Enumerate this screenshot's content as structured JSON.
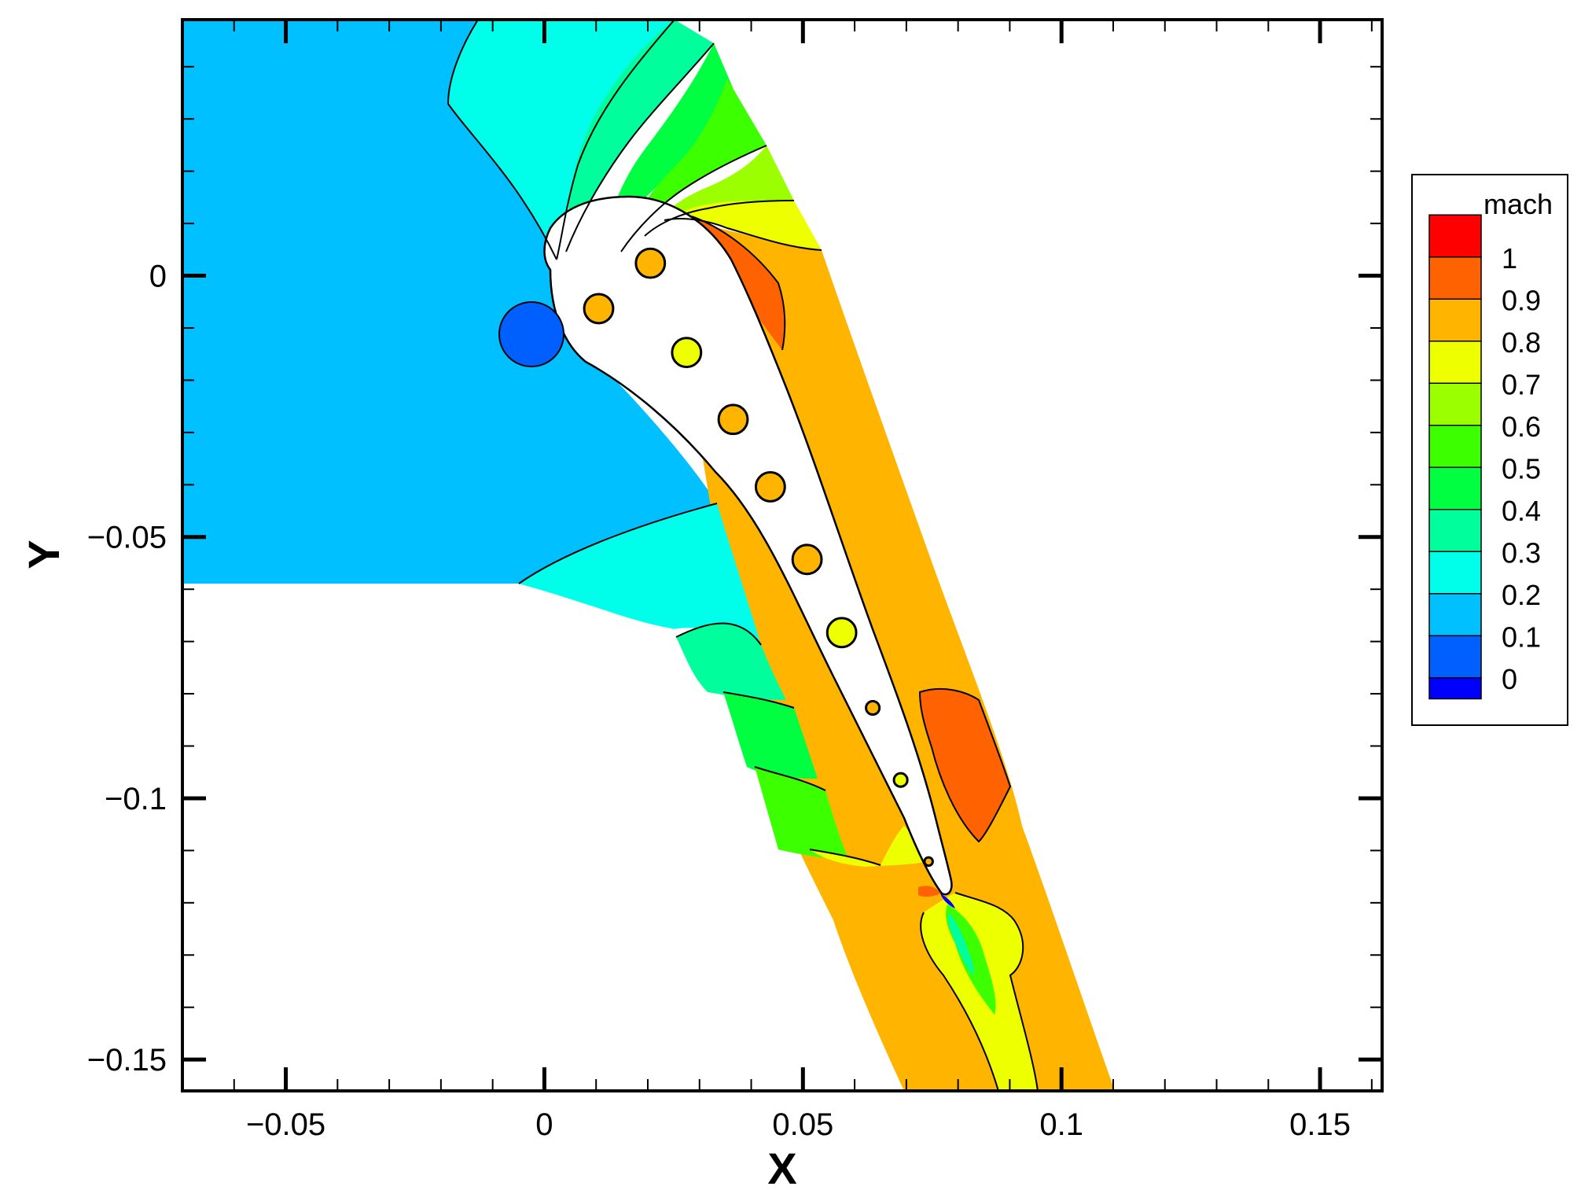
{
  "chart_data": {
    "type": "contour",
    "xlabel": "X",
    "ylabel": "Y",
    "xlim": [
      -0.07,
      0.162
    ],
    "ylim": [
      -0.156,
      0.049
    ],
    "x_ticks": [
      {
        "value": -0.05,
        "label": "−0.05"
      },
      {
        "value": 0,
        "label": "0"
      },
      {
        "value": 0.05,
        "label": "0.05"
      },
      {
        "value": 0.1,
        "label": "0.1"
      },
      {
        "value": 0.15,
        "label": "0.15"
      }
    ],
    "y_ticks": [
      {
        "value": 0,
        "label": "0"
      },
      {
        "value": -0.05,
        "label": "−0.05"
      },
      {
        "value": -0.1,
        "label": "−0.1"
      },
      {
        "value": -0.15,
        "label": "−0.15"
      }
    ],
    "legend": {
      "title": "mach",
      "placement": "right",
      "levels": [
        {
          "value": 1,
          "label": "1",
          "color": "#ff0000"
        },
        {
          "value": 0.9,
          "label": "0.9",
          "color": "#ff6200"
        },
        {
          "value": 0.8,
          "label": "0.8",
          "color": "#ffb400"
        },
        {
          "value": 0.7,
          "label": "0.7",
          "color": "#eeff00"
        },
        {
          "value": 0.6,
          "label": "0.6",
          "color": "#9cff00"
        },
        {
          "value": 0.5,
          "label": "0.5",
          "color": "#3cff00"
        },
        {
          "value": 0.4,
          "label": "0.4",
          "color": "#00ff40"
        },
        {
          "value": 0.3,
          "label": "0.3",
          "color": "#00ff9c"
        },
        {
          "value": 0.2,
          "label": "0.2",
          "color": "#00ffea"
        },
        {
          "value": 0.1,
          "label": "0.1",
          "color": "#00c0ff"
        },
        {
          "value": 0,
          "label": "0",
          "color": "#0060ff"
        }
      ],
      "bottom_color": "#0000ff"
    },
    "cooling_holes": [
      {
        "x": 0.0205,
        "y": 0.0024,
        "r": 0.0028,
        "mach": 0.8
      },
      {
        "x": 0.0105,
        "y": -0.0063,
        "r": 0.0028,
        "mach": 0.8
      },
      {
        "x": 0.0275,
        "y": -0.0147,
        "r": 0.0028,
        "mach": 0.7
      },
      {
        "x": 0.0365,
        "y": -0.0275,
        "r": 0.0028,
        "mach": 0.8
      },
      {
        "x": 0.0437,
        "y": -0.0404,
        "r": 0.0028,
        "mach": 0.8
      },
      {
        "x": 0.0508,
        "y": -0.0543,
        "r": 0.0028,
        "mach": 0.8
      },
      {
        "x": 0.0575,
        "y": -0.0683,
        "r": 0.0028,
        "mach": 0.7
      },
      {
        "x": 0.0635,
        "y": -0.0827,
        "r": 0.0013,
        "mach": 0.8
      },
      {
        "x": 0.0689,
        "y": -0.0965,
        "r": 0.0013,
        "mach": 0.7
      },
      {
        "x": 0.0743,
        "y": -0.1121,
        "r": 0.0008,
        "mach": 0.8
      }
    ],
    "inlet_feature": {
      "x": -0.003,
      "y": -0.0112,
      "r": 0.0065,
      "mach": 0.1
    }
  }
}
